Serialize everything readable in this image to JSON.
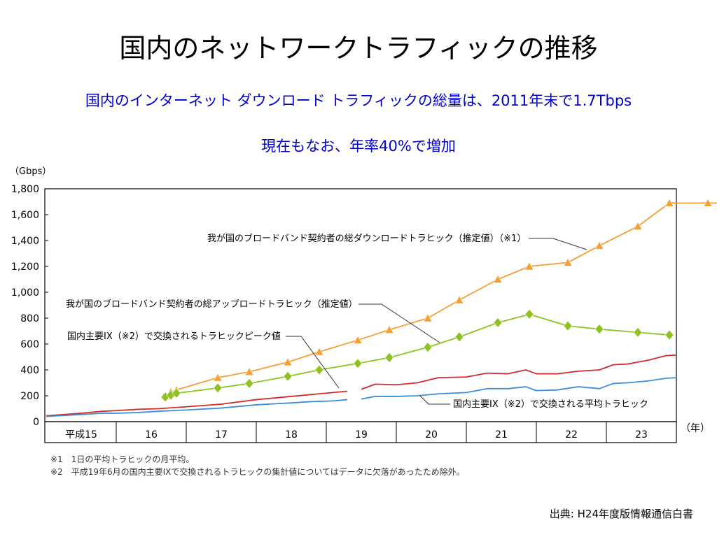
{
  "slide": {
    "title": "国内のネットワークトラフィックの推移",
    "subtitle_1": "国内のインターネット ダウンロード トラフィックの総量は、2011年末で1.7Tbps",
    "subtitle_2": "現在もなお、年率40%で増加",
    "source": "出典: H24年度版情報通信白書"
  },
  "colors": {
    "download": "#f5a033",
    "upload": "#8dc21f",
    "ix_peak": "#d42a2a",
    "ix_average": "#3a8fd8",
    "subtitle": "#0000cc"
  },
  "chart_data": {
    "type": "line",
    "y_unit_label": "（Gbps）",
    "x_unit_label": "（年）",
    "ylim": [
      0,
      1800
    ],
    "yticks": [
      0,
      200,
      400,
      600,
      800,
      1000,
      1200,
      1400,
      1600,
      1800
    ],
    "ytick_labels": [
      "0",
      "200",
      "400",
      "600",
      "800",
      "1,000",
      "1,200",
      "1,400",
      "1,600",
      "1,800"
    ],
    "xlim": [
      0,
      11
    ],
    "x_categories": [
      {
        "label": "平成15",
        "from": 0,
        "to": 1
      },
      {
        "label": "16",
        "from": 1,
        "to": 2
      },
      {
        "label": "17",
        "from": 2,
        "to": 3
      },
      {
        "label": "18",
        "from": 3,
        "to": 4
      },
      {
        "label": "19",
        "from": 4,
        "to": 5
      },
      {
        "label": "20",
        "from": 5,
        "to": 6
      },
      {
        "label": "21",
        "from": 6,
        "to": 7
      },
      {
        "label": "22",
        "from": 7,
        "to": 8
      },
      {
        "label": "23",
        "from": 8,
        "to": 9
      }
    ],
    "grid": false,
    "series": [
      {
        "name": "我が国のブロードバンド契約者の総ダウンロードトラヒック（推定値）（※1）",
        "color_key": "download",
        "marker": "triangle",
        "x": [
          1.7,
          1.78,
          1.86,
          2.45,
          2.9,
          3.45,
          3.9,
          4.45,
          4.9,
          5.45,
          5.9,
          6.45,
          6.9,
          7.45,
          7.9,
          8.45,
          8.9,
          9.45,
          9.9
        ],
        "y": [
          200,
          230,
          245,
          340,
          385,
          460,
          540,
          630,
          710,
          800,
          940,
          1100,
          1200,
          1230,
          1360,
          1510,
          1690,
          1690,
          1690
        ]
      },
      {
        "name": "我が国のブロードバンド契約者の総アップロードトラヒック（推定値）",
        "color_key": "upload",
        "marker": "diamond",
        "x": [
          1.7,
          1.78,
          1.86,
          2.45,
          2.9,
          3.45,
          3.9,
          4.45,
          4.9,
          5.45,
          5.9,
          6.45,
          6.9,
          7.45,
          7.9,
          8.45,
          8.9
        ],
        "y": [
          190,
          205,
          220,
          260,
          295,
          350,
          400,
          450,
          495,
          575,
          655,
          765,
          830,
          740,
          715,
          690,
          670
        ]
      },
      {
        "name": "国内主要IX（※2）で交換されるトラヒックピーク値",
        "color_key": "ix_peak",
        "marker": "none",
        "segments": [
          {
            "x": [
              0,
              0.5,
              0.8,
              1.0,
              1.3,
              1.6,
              2.0,
              2.5,
              3.0,
              3.5,
              3.8,
              4.1,
              4.3
            ],
            "y": [
              45,
              65,
              80,
              85,
              95,
              100,
              115,
              135,
              170,
              195,
              210,
              225,
              235
            ]
          },
          {
            "x": [
              4.5,
              4.7,
              5.0,
              5.3,
              5.6,
              6.0,
              6.3,
              6.6,
              6.85,
              7.0,
              7.3,
              7.6,
              7.9,
              8.1,
              8.3,
              8.6,
              8.85,
              9.0
            ],
            "y": [
              250,
              290,
              285,
              300,
              340,
              345,
              375,
              370,
              400,
              370,
              370,
              390,
              400,
              440,
              445,
              475,
              510,
              515
            ]
          }
        ]
      },
      {
        "name": "国内主要IX（※2）で交換される平均トラヒック",
        "color_key": "ix_average",
        "marker": "none",
        "segments": [
          {
            "x": [
              0,
              0.5,
              0.8,
              1.0,
              1.3,
              1.6,
              2.0,
              2.5,
              3.0,
              3.5,
              3.8,
              4.1,
              4.3
            ],
            "y": [
              40,
              55,
              65,
              65,
              70,
              80,
              90,
              105,
              130,
              145,
              155,
              160,
              170
            ]
          },
          {
            "x": [
              4.5,
              4.7,
              5.0,
              5.3,
              5.6,
              6.0,
              6.3,
              6.6,
              6.85,
              7.0,
              7.3,
              7.6,
              7.9,
              8.1,
              8.3,
              8.6,
              8.85,
              9.0
            ],
            "y": [
              175,
              195,
              195,
              200,
              215,
              225,
              255,
              255,
              270,
              240,
              245,
              270,
              255,
              295,
              300,
              315,
              335,
              340
            ]
          }
        ]
      }
    ],
    "annotations": [
      "我が国のブロードバンド契約者の総ダウンロードトラヒック（推定値）（※1）",
      "我が国のブロードバンド契約者の総アップロードトラヒック（推定値）",
      "国内主要IX（※2）で交換されるトラヒックピーク値",
      "国内主要IX（※2）で交換される平均トラヒック"
    ],
    "footnotes": [
      "※1　1日の平均トラヒックの月平均。",
      "※2　平成19年6月の国内主要IXで交換されるトラヒックの集計値についてはデータに欠落があったため除外。"
    ]
  }
}
